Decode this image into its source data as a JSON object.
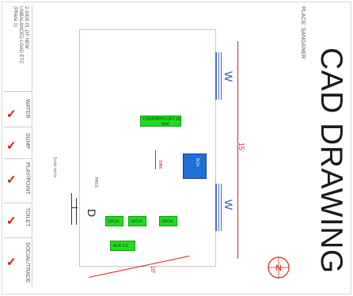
{
  "title": "CAD DRAWING",
  "place": "PLACE: SANGANER",
  "header_lines": [
    "2-SIDE PL OF NEW",
    "UNBALANCED LOAD ETC",
    "(Phase 1)"
  ],
  "side_rooms": [
    "WATER",
    "SUMP",
    "PLAY/POINT",
    "TOILET",
    "SOCIAL/TRADE"
  ],
  "note": "Scale not to",
  "dimensions": {
    "vertical": "15'",
    "horizontal": "10'"
  },
  "windows": [
    {
      "label": "W"
    },
    {
      "label": "W"
    }
  ],
  "door_label": "D",
  "blue_box_label": "BOX",
  "red_note": "SINK",
  "side_note": "PASS",
  "green_labels": [
    "CHAPPATHI LIFT 18",
    "Wall",
    "1DCol",
    "1DCol",
    "1DCol",
    "ACK 1.0"
  ],
  "colors": {
    "furniture": "#1fdc1f",
    "fixture": "#1e6fd8",
    "dimension": "#dd2222",
    "window": "#4a72b8"
  },
  "compass_letter": "N"
}
